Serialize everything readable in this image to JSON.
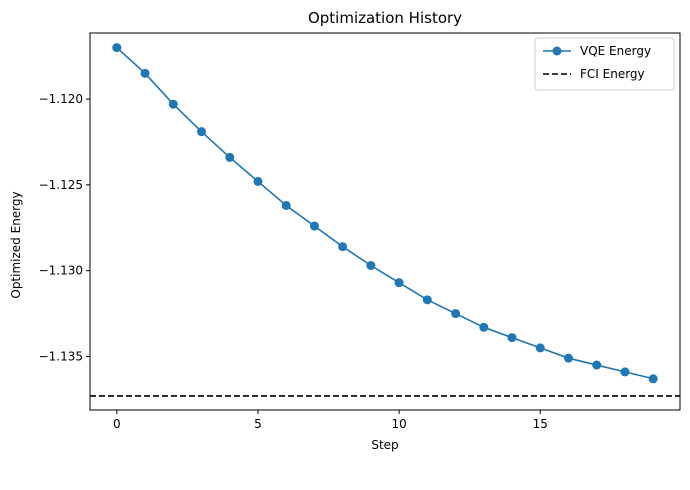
{
  "chart_data": {
    "type": "line",
    "title": "Optimization History",
    "xlabel": "Step",
    "ylabel": "Optimized Energy",
    "xlim": [
      -0.95,
      19.95
    ],
    "ylim": [
      -1.13812,
      -1.11615
    ],
    "xticks": [
      0,
      5,
      10,
      15
    ],
    "xtick_labels": [
      "0",
      "5",
      "10",
      "15"
    ],
    "yticks": [
      -1.12,
      -1.125,
      -1.13,
      -1.135
    ],
    "ytick_labels": [
      "−1.120",
      "−1.125",
      "−1.130",
      "−1.135"
    ],
    "grid": false,
    "legend_position": "top-right",
    "series": [
      {
        "name": "VQE Energy",
        "style": "line-with-circle-markers",
        "color": "#1f77b4",
        "x": [
          0,
          1,
          2,
          3,
          4,
          5,
          6,
          7,
          8,
          9,
          10,
          11,
          12,
          13,
          14,
          15,
          16,
          17,
          18,
          19
        ],
        "values": [
          -1.117,
          -1.1185,
          -1.1203,
          -1.1219,
          -1.1234,
          -1.1248,
          -1.1262,
          -1.1274,
          -1.1286,
          -1.1297,
          -1.1307,
          -1.1317,
          -1.1325,
          -1.1333,
          -1.1339,
          -1.1345,
          -1.1351,
          -1.1355,
          -1.1359,
          -1.1363
        ]
      },
      {
        "name": "FCI Energy",
        "style": "dashed-horizontal-line",
        "color": "#000000",
        "value": -1.1373
      }
    ]
  }
}
